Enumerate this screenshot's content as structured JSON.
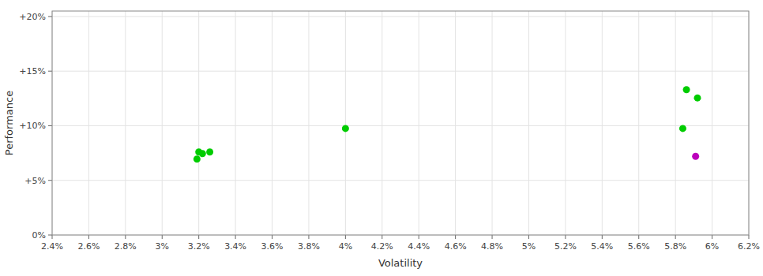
{
  "chart_data": {
    "type": "scatter",
    "xlabel": "Volatility",
    "ylabel": "Performance",
    "series": [
      {
        "color": "#00cc00",
        "x": [
          0.032,
          0.0322,
          0.0326,
          0.0319,
          0.04,
          0.0586,
          0.0592,
          0.0584
        ],
        "values": [
          0.076,
          0.0745,
          0.076,
          0.0695,
          0.0975,
          0.133,
          0.1255,
          0.0975
        ]
      },
      {
        "color": "#bb00bb",
        "x": [
          0.0591
        ],
        "values": [
          0.072
        ]
      }
    ],
    "xlim": [
      0.024,
      0.062
    ],
    "ylim": [
      0.0,
      0.205
    ],
    "xticks": [
      {
        "value": 0.024,
        "label": "2.4%"
      },
      {
        "value": 0.026,
        "label": "2.6%"
      },
      {
        "value": 0.028,
        "label": "2.8%"
      },
      {
        "value": 0.03,
        "label": "3%"
      },
      {
        "value": 0.032,
        "label": "3.2%"
      },
      {
        "value": 0.034,
        "label": "3.4%"
      },
      {
        "value": 0.036,
        "label": "3.6%"
      },
      {
        "value": 0.038,
        "label": "3.8%"
      },
      {
        "value": 0.04,
        "label": "4%"
      },
      {
        "value": 0.042,
        "label": "4.2%"
      },
      {
        "value": 0.044,
        "label": "4.4%"
      },
      {
        "value": 0.046,
        "label": "4.6%"
      },
      {
        "value": 0.048,
        "label": "4.8%"
      },
      {
        "value": 0.05,
        "label": "5%"
      },
      {
        "value": 0.052,
        "label": "5.2%"
      },
      {
        "value": 0.054,
        "label": "5.4%"
      },
      {
        "value": 0.056,
        "label": "5.6%"
      },
      {
        "value": 0.058,
        "label": "5.8%"
      },
      {
        "value": 0.06,
        "label": "6%"
      },
      {
        "value": 0.062,
        "label": "6.2%"
      }
    ],
    "yticks": [
      {
        "value": 0.0,
        "label": "0%"
      },
      {
        "value": 0.05,
        "label": "+5%"
      },
      {
        "value": 0.1,
        "label": "+10%"
      },
      {
        "value": 0.15,
        "label": "+15%"
      },
      {
        "value": 0.2,
        "label": "+20%"
      }
    ],
    "grid": true
  }
}
